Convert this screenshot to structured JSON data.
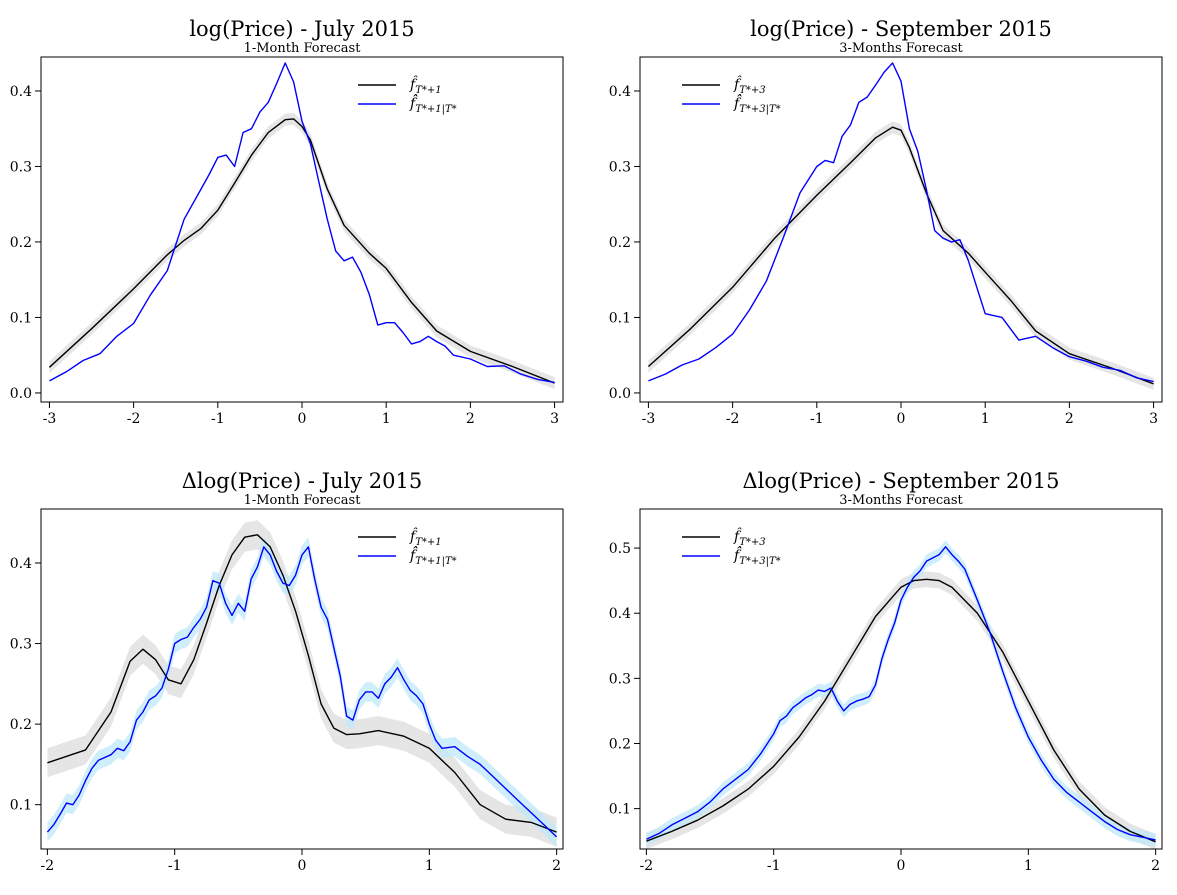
{
  "charts": [
    {
      "title": "log(Price) - July 2015",
      "subtitle": "1-Month Forecast",
      "legend_a": "f̂",
      "legend_a_sub": "T*+1",
      "legend_b": "f̂̂",
      "legend_b_sub": "T*+1|T*",
      "chart_data": {
        "type": "line",
        "xlim": [
          -3.1,
          3.1
        ],
        "ylim": [
          -0.012,
          0.445
        ],
        "xticks": [
          -3,
          -2,
          -1,
          0,
          1,
          2,
          3
        ],
        "yticks": [
          0.0,
          0.1,
          0.2,
          0.3,
          0.4
        ],
        "legend_placement": "top-right",
        "series": [
          {
            "color": "#000000",
            "band": 0.008,
            "x": [
              -3.0,
              -2.5,
              -2.0,
              -1.6,
              -1.4,
              -1.2,
              -1.0,
              -0.8,
              -0.6,
              -0.4,
              -0.2,
              -0.1,
              0.0,
              0.1,
              0.3,
              0.5,
              0.8,
              1.0,
              1.3,
              1.6,
              2.0,
              2.5,
              3.0
            ],
            "y": [
              0.034,
              0.085,
              0.138,
              0.183,
              0.202,
              0.218,
              0.242,
              0.278,
              0.315,
              0.345,
              0.362,
              0.363,
              0.353,
              0.335,
              0.27,
              0.222,
              0.185,
              0.165,
              0.12,
              0.082,
              0.055,
              0.035,
              0.013
            ]
          },
          {
            "color": "#0000ff",
            "band": 0,
            "x": [
              -3.0,
              -2.8,
              -2.6,
              -2.4,
              -2.2,
              -2.0,
              -1.8,
              -1.6,
              -1.4,
              -1.2,
              -1.1,
              -1.0,
              -0.9,
              -0.8,
              -0.7,
              -0.6,
              -0.5,
              -0.4,
              -0.3,
              -0.2,
              -0.1,
              0.0,
              0.1,
              0.2,
              0.3,
              0.4,
              0.5,
              0.6,
              0.7,
              0.8,
              0.9,
              1.0,
              1.1,
              1.2,
              1.3,
              1.4,
              1.5,
              1.6,
              1.7,
              1.8,
              2.0,
              2.2,
              2.4,
              2.6,
              2.8,
              3.0
            ],
            "y": [
              0.016,
              0.028,
              0.043,
              0.052,
              0.075,
              0.092,
              0.13,
              0.162,
              0.23,
              0.27,
              0.29,
              0.312,
              0.315,
              0.3,
              0.345,
              0.35,
              0.372,
              0.385,
              0.41,
              0.437,
              0.412,
              0.36,
              0.33,
              0.28,
              0.23,
              0.188,
              0.175,
              0.18,
              0.16,
              0.13,
              0.09,
              0.093,
              0.093,
              0.08,
              0.065,
              0.068,
              0.075,
              0.068,
              0.062,
              0.05,
              0.045,
              0.035,
              0.036,
              0.025,
              0.018,
              0.014
            ]
          }
        ]
      }
    },
    {
      "title": "log(Price) - September 2015",
      "subtitle": "3-Months Forecast",
      "legend_a": "f̂",
      "legend_a_sub": "T*+3",
      "legend_b": "f̂̂",
      "legend_b_sub": "T*+3|T*",
      "chart_data": {
        "type": "line",
        "xlim": [
          -3.1,
          3.1
        ],
        "ylim": [
          -0.012,
          0.445
        ],
        "xticks": [
          -3,
          -2,
          -1,
          0,
          1,
          2,
          3
        ],
        "yticks": [
          0.0,
          0.1,
          0.2,
          0.3,
          0.4
        ],
        "legend_placement": "top-left",
        "series": [
          {
            "color": "#000000",
            "band": 0.008,
            "x": [
              -3.0,
              -2.5,
              -2.0,
              -1.5,
              -1.0,
              -0.6,
              -0.3,
              -0.1,
              0.0,
              0.1,
              0.3,
              0.5,
              0.8,
              1.0,
              1.3,
              1.6,
              2.0,
              2.5,
              3.0
            ],
            "y": [
              0.035,
              0.085,
              0.14,
              0.205,
              0.262,
              0.305,
              0.338,
              0.352,
              0.348,
              0.325,
              0.265,
              0.215,
              0.185,
              0.16,
              0.123,
              0.082,
              0.052,
              0.033,
              0.012
            ]
          },
          {
            "color": "#0000ff",
            "band": 0,
            "x": [
              -3.0,
              -2.8,
              -2.6,
              -2.4,
              -2.2,
              -2.0,
              -1.8,
              -1.6,
              -1.4,
              -1.2,
              -1.0,
              -0.9,
              -0.8,
              -0.7,
              -0.6,
              -0.5,
              -0.4,
              -0.3,
              -0.2,
              -0.1,
              0.0,
              0.1,
              0.2,
              0.3,
              0.4,
              0.5,
              0.6,
              0.7,
              0.8,
              0.9,
              1.0,
              1.2,
              1.4,
              1.6,
              1.8,
              2.0,
              2.2,
              2.4,
              2.6,
              2.8,
              3.0
            ],
            "y": [
              0.016,
              0.025,
              0.037,
              0.045,
              0.06,
              0.078,
              0.11,
              0.148,
              0.205,
              0.265,
              0.3,
              0.308,
              0.305,
              0.34,
              0.355,
              0.385,
              0.392,
              0.408,
              0.425,
              0.437,
              0.413,
              0.35,
              0.32,
              0.27,
              0.215,
              0.205,
              0.2,
              0.203,
              0.175,
              0.14,
              0.105,
              0.1,
              0.07,
              0.075,
              0.06,
              0.048,
              0.042,
              0.034,
              0.03,
              0.02,
              0.015
            ]
          }
        ]
      }
    },
    {
      "title": "Δlog(Price) - July 2015",
      "subtitle": "1-Month Forecast",
      "legend_a": "f̂",
      "legend_a_sub": "T*+1",
      "legend_b": "f̂̂",
      "legend_b_sub": "T*+1|T*",
      "chart_data": {
        "type": "line",
        "xlim": [
          -2.05,
          2.05
        ],
        "ylim": [
          0.045,
          0.467
        ],
        "xticks": [
          -2,
          -1,
          0,
          1,
          2
        ],
        "yticks": [
          0.1,
          0.2,
          0.3,
          0.4
        ],
        "legend_placement": "top-right",
        "series": [
          {
            "color": "#000000",
            "band": 0.018,
            "x": [
              -2.0,
              -1.7,
              -1.5,
              -1.35,
              -1.25,
              -1.15,
              -1.05,
              -0.95,
              -0.85,
              -0.75,
              -0.65,
              -0.55,
              -0.45,
              -0.35,
              -0.25,
              -0.15,
              -0.05,
              0.05,
              0.15,
              0.25,
              0.35,
              0.45,
              0.6,
              0.8,
              1.0,
              1.2,
              1.4,
              1.6,
              1.8,
              2.0
            ],
            "y": [
              0.152,
              0.168,
              0.215,
              0.278,
              0.293,
              0.28,
              0.255,
              0.25,
              0.28,
              0.325,
              0.372,
              0.41,
              0.432,
              0.435,
              0.42,
              0.385,
              0.34,
              0.285,
              0.225,
              0.195,
              0.187,
              0.188,
              0.192,
              0.185,
              0.17,
              0.14,
              0.1,
              0.082,
              0.078,
              0.066
            ]
          },
          {
            "color": "#0000ff",
            "band": 0.012,
            "x": [
              -2.0,
              -1.95,
              -1.9,
              -1.85,
              -1.8,
              -1.75,
              -1.7,
              -1.65,
              -1.6,
              -1.5,
              -1.45,
              -1.4,
              -1.35,
              -1.3,
              -1.25,
              -1.2,
              -1.15,
              -1.1,
              -1.05,
              -1.0,
              -0.95,
              -0.9,
              -0.85,
              -0.8,
              -0.75,
              -0.7,
              -0.65,
              -0.6,
              -0.55,
              -0.5,
              -0.45,
              -0.4,
              -0.35,
              -0.3,
              -0.25,
              -0.2,
              -0.15,
              -0.1,
              -0.05,
              0.0,
              0.05,
              0.1,
              0.15,
              0.2,
              0.25,
              0.3,
              0.35,
              0.4,
              0.45,
              0.5,
              0.55,
              0.6,
              0.65,
              0.7,
              0.75,
              0.8,
              0.85,
              0.9,
              0.95,
              1.0,
              1.05,
              1.1,
              1.2,
              1.3,
              1.4,
              1.5,
              1.6,
              1.7,
              1.8,
              1.9,
              2.0
            ],
            "y": [
              0.066,
              0.075,
              0.088,
              0.102,
              0.1,
              0.112,
              0.13,
              0.145,
              0.155,
              0.162,
              0.17,
              0.167,
              0.178,
              0.205,
              0.215,
              0.23,
              0.235,
              0.245,
              0.268,
              0.3,
              0.305,
              0.308,
              0.32,
              0.33,
              0.345,
              0.378,
              0.375,
              0.35,
              0.335,
              0.35,
              0.34,
              0.38,
              0.395,
              0.42,
              0.41,
              0.39,
              0.375,
              0.372,
              0.385,
              0.41,
              0.42,
              0.38,
              0.345,
              0.33,
              0.295,
              0.26,
              0.21,
              0.205,
              0.23,
              0.24,
              0.24,
              0.232,
              0.25,
              0.258,
              0.27,
              0.255,
              0.242,
              0.235,
              0.225,
              0.2,
              0.18,
              0.17,
              0.172,
              0.16,
              0.15,
              0.135,
              0.12,
              0.105,
              0.09,
              0.075,
              0.06
            ]
          }
        ]
      }
    },
    {
      "title": "Δlog(Price) - September 2015",
      "subtitle": "3-Months Forecast",
      "legend_a": "f̂",
      "legend_a_sub": "T*+3",
      "legend_b": "f̂̂",
      "legend_b_sub": "T*+3|T*",
      "chart_data": {
        "type": "line",
        "xlim": [
          -2.05,
          2.05
        ],
        "ylim": [
          0.038,
          0.56
        ],
        "xticks": [
          -2,
          -1,
          0,
          1,
          2
        ],
        "yticks": [
          0.1,
          0.2,
          0.3,
          0.4,
          0.5
        ],
        "legend_placement": "top-left",
        "series": [
          {
            "color": "#000000",
            "band": 0.012,
            "x": [
              -2.0,
              -1.8,
              -1.6,
              -1.4,
              -1.2,
              -1.0,
              -0.8,
              -0.6,
              -0.4,
              -0.2,
              0.0,
              0.1,
              0.2,
              0.3,
              0.4,
              0.6,
              0.8,
              1.0,
              1.2,
              1.4,
              1.6,
              1.8,
              2.0
            ],
            "y": [
              0.05,
              0.065,
              0.082,
              0.104,
              0.13,
              0.165,
              0.21,
              0.265,
              0.33,
              0.395,
              0.44,
              0.45,
              0.452,
              0.45,
              0.44,
              0.4,
              0.34,
              0.265,
              0.19,
              0.13,
              0.09,
              0.065,
              0.049
            ]
          },
          {
            "color": "#0000ff",
            "band": 0.01,
            "x": [
              -2.0,
              -1.9,
              -1.8,
              -1.7,
              -1.6,
              -1.5,
              -1.4,
              -1.3,
              -1.2,
              -1.1,
              -1.0,
              -0.95,
              -0.9,
              -0.85,
              -0.8,
              -0.75,
              -0.7,
              -0.65,
              -0.6,
              -0.55,
              -0.5,
              -0.45,
              -0.4,
              -0.35,
              -0.3,
              -0.25,
              -0.2,
              -0.15,
              -0.1,
              -0.05,
              0.0,
              0.05,
              0.1,
              0.15,
              0.2,
              0.25,
              0.3,
              0.35,
              0.4,
              0.45,
              0.5,
              0.6,
              0.7,
              0.8,
              0.9,
              1.0,
              1.1,
              1.2,
              1.3,
              1.4,
              1.5,
              1.6,
              1.7,
              1.8,
              1.9,
              2.0
            ],
            "y": [
              0.053,
              0.062,
              0.075,
              0.085,
              0.095,
              0.11,
              0.13,
              0.145,
              0.16,
              0.185,
              0.215,
              0.235,
              0.242,
              0.255,
              0.262,
              0.27,
              0.275,
              0.282,
              0.28,
              0.285,
              0.265,
              0.25,
              0.26,
              0.265,
              0.268,
              0.272,
              0.29,
              0.33,
              0.36,
              0.385,
              0.42,
              0.44,
              0.455,
              0.465,
              0.48,
              0.485,
              0.49,
              0.502,
              0.49,
              0.48,
              0.468,
              0.42,
              0.37,
              0.31,
              0.255,
              0.21,
              0.175,
              0.145,
              0.125,
              0.11,
              0.095,
              0.08,
              0.068,
              0.06,
              0.056,
              0.052
            ]
          }
        ]
      }
    }
  ]
}
